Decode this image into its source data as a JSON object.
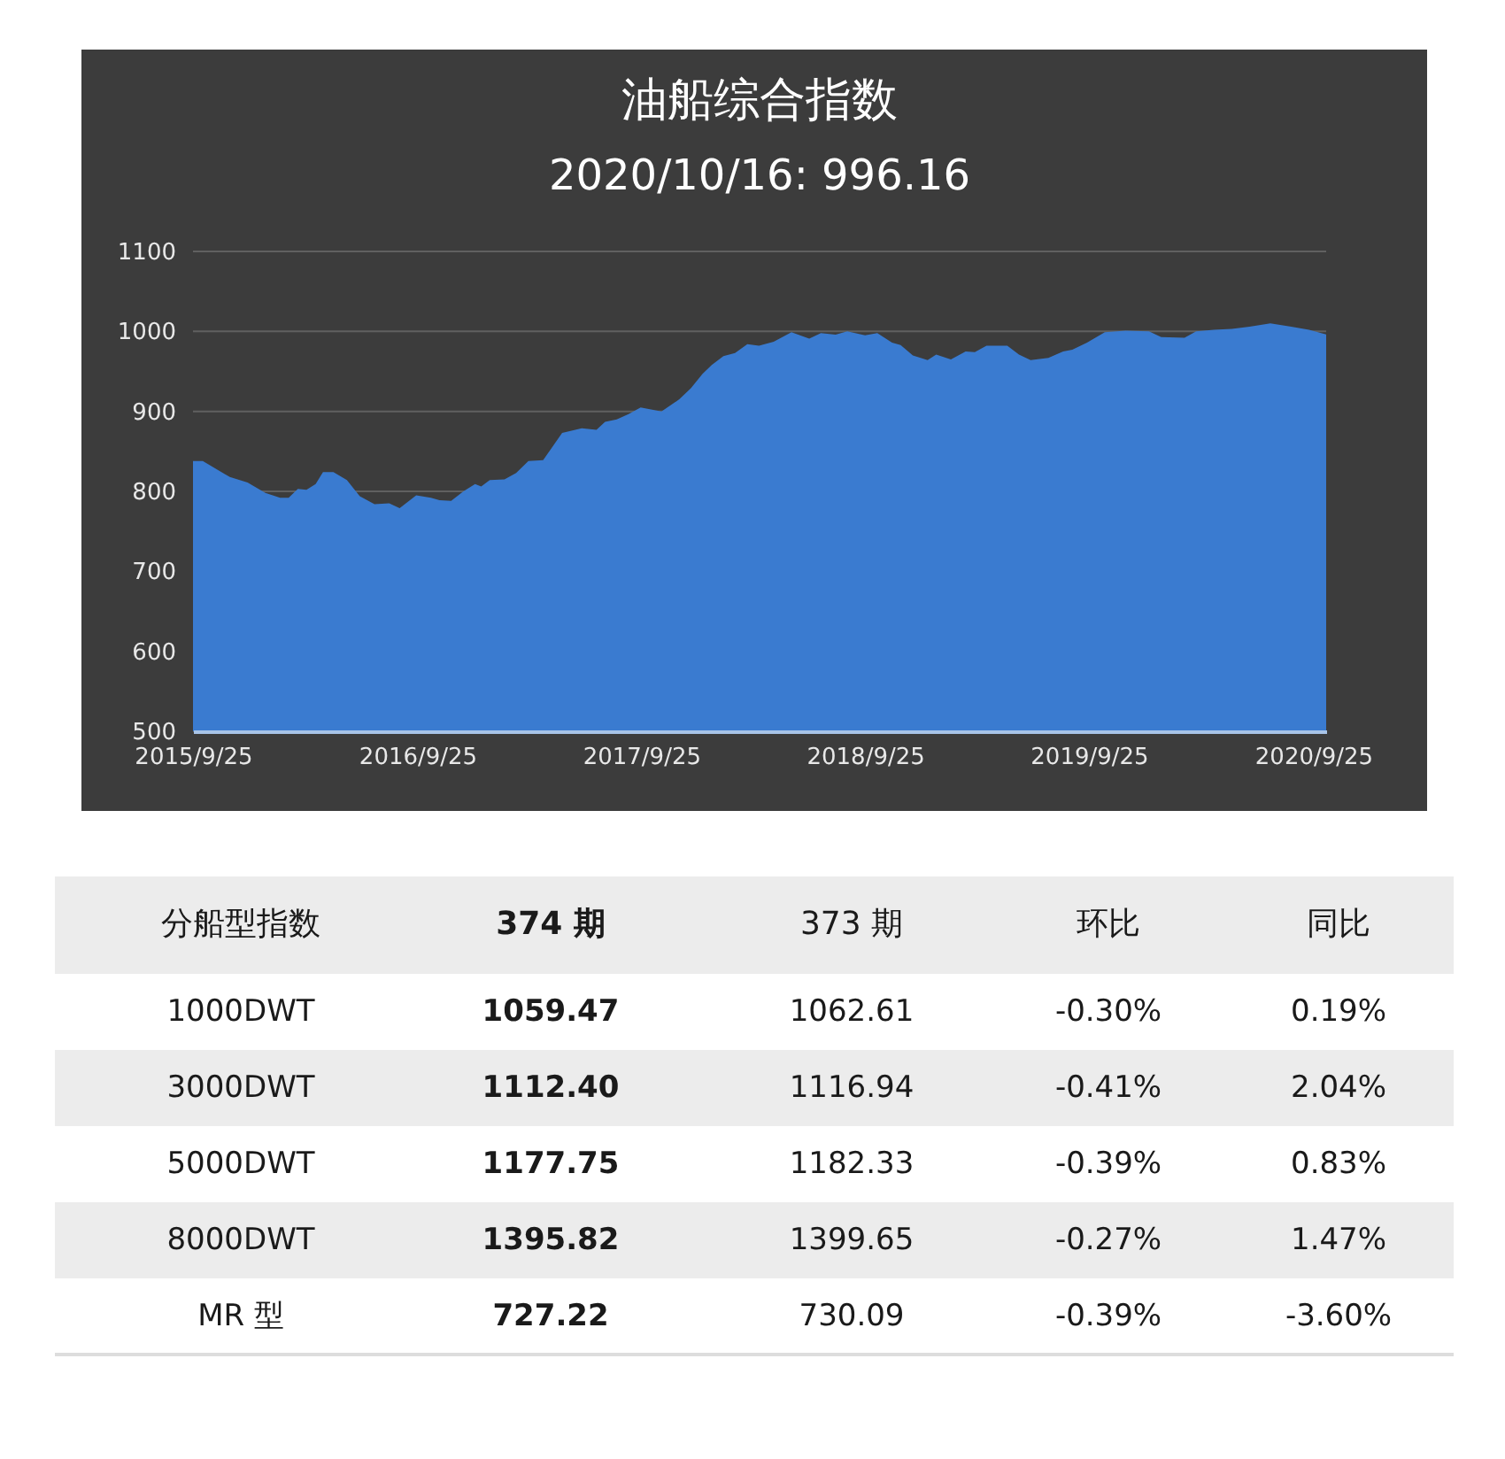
{
  "chart_data": [
    {
      "type": "area",
      "title": "油船综合指数",
      "subtitle": "2020/10/16: 996.16",
      "color": "#3a7bd0",
      "grid": "y",
      "x": [
        "2015-09-25",
        "2015-10-11",
        "2015-11-24",
        "2015-12-23",
        "2016-01-21",
        "2016-02-14",
        "2016-02-28",
        "2016-03-14",
        "2016-03-28",
        "2016-04-12",
        "2016-04-24",
        "2016-05-11",
        "2016-06-02",
        "2016-06-23",
        "2016-07-17",
        "2016-08-10",
        "2016-08-27",
        "2016-09-23",
        "2016-10-17",
        "2016-10-31",
        "2016-11-19",
        "2016-12-09",
        "2016-12-28",
        "2017-01-07",
        "2017-01-21",
        "2017-02-14",
        "2017-03-05",
        "2017-03-25",
        "2017-04-18",
        "2017-05-19",
        "2017-06-20",
        "2017-07-14",
        "2017-07-28",
        "2017-08-16",
        "2017-09-05",
        "2017-09-24",
        "2017-10-28",
        "2017-11-26",
        "2017-12-15",
        "2018-01-03",
        "2018-01-18",
        "2018-02-06",
        "2018-02-25",
        "2018-03-17",
        "2018-04-05",
        "2018-04-29",
        "2018-05-28",
        "2018-06-26",
        "2018-07-15",
        "2018-08-08",
        "2018-08-27",
        "2018-09-25",
        "2018-10-15",
        "2018-11-08",
        "2018-11-22",
        "2018-12-12",
        "2019-01-05",
        "2019-01-19",
        "2019-02-12",
        "2019-03-08",
        "2019-03-23",
        "2019-04-11",
        "2019-05-15",
        "2019-06-03",
        "2019-06-22",
        "2019-07-21",
        "2019-08-14",
        "2019-08-29",
        "2019-09-22",
        "2019-10-21",
        "2019-11-24",
        "2020-01-01",
        "2020-01-21",
        "2020-02-28",
        "2020-03-18",
        "2020-04-16",
        "2020-05-15",
        "2020-06-13",
        "2020-07-17",
        "2020-08-20",
        "2020-09-18",
        "2020-10-16"
      ],
      "values": [
        838,
        838,
        818,
        811,
        798,
        792,
        792,
        803,
        802,
        809,
        824,
        824,
        814,
        794,
        784,
        785,
        779,
        795,
        792,
        789,
        788,
        800,
        809,
        806,
        814,
        815,
        823,
        838,
        839,
        873,
        879,
        877,
        887,
        890,
        897,
        905,
        900,
        915,
        929,
        947,
        958,
        969,
        973,
        984,
        982,
        987,
        999,
        991,
        998,
        996,
        1000,
        995,
        998,
        986,
        983,
        970,
        964,
        971,
        965,
        975,
        974,
        982,
        982,
        971,
        964,
        967,
        975,
        977,
        986,
        999,
        1001,
        1000,
        993,
        992,
        1000,
        1002,
        1003,
        1006,
        1010,
        1006,
        1002,
        996.16
      ],
      "xlim": [
        "2015-09-25",
        "2020-10-16"
      ],
      "xticks": [
        {
          "value": "2015-09-25",
          "label": "2015/9/25"
        },
        {
          "value": "2016-09-25",
          "label": "2016/9/25"
        },
        {
          "value": "2017-09-25",
          "label": "2017/9/25"
        },
        {
          "value": "2018-09-25",
          "label": "2018/9/25"
        },
        {
          "value": "2019-09-25",
          "label": "2019/9/25"
        },
        {
          "value": "2020-09-25",
          "label": "2020/9/25"
        }
      ],
      "ylim": [
        500,
        1100
      ],
      "yticks": [
        500,
        600,
        700,
        800,
        900,
        1000,
        1100
      ]
    },
    {
      "type": "other",
      "annotations": [
        "分船型指数",
        "374 期",
        "373 期",
        "环比",
        "同比",
        "1000DWT",
        "1059.47",
        "1062.61",
        "-0.30%",
        "0.19%",
        "3000DWT",
        "1112.40",
        "1116.94",
        "-0.41%",
        "2.04%",
        "5000DWT",
        "1177.75",
        "1182.33",
        "-0.39%",
        "0.83%",
        "8000DWT",
        "1395.82",
        "1399.65",
        "-0.27%",
        "1.47%",
        "MR 型",
        "727.22",
        "730.09",
        "-0.39%",
        "-3.60%"
      ]
    }
  ]
}
